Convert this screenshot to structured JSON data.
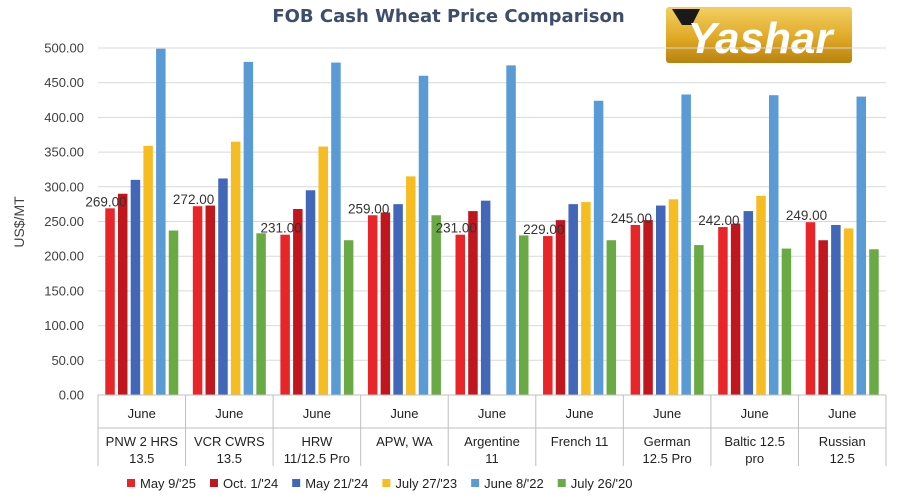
{
  "logo": {
    "text": "Yashar"
  },
  "chart_data": {
    "type": "bar",
    "title": "FOB Cash Wheat Price Comparison",
    "ylabel": "US$/MT",
    "ylim": [
      0,
      500
    ],
    "yticks": [
      "0.00",
      "50.00",
      "100.00",
      "150.00",
      "200.00",
      "250.00",
      "300.00",
      "350.00",
      "400.00",
      "450.00",
      "500.00"
    ],
    "grid": true,
    "legend_position": "bottom",
    "categories": [
      {
        "month": "June",
        "name": [
          "PNW 2 HRS",
          "13.5"
        ]
      },
      {
        "month": "June",
        "name": [
          "VCR CWRS",
          "13.5"
        ]
      },
      {
        "month": "June",
        "name": [
          "HRW",
          "11/12.5 Pro"
        ]
      },
      {
        "month": "June",
        "name": [
          "APW, WA",
          ""
        ]
      },
      {
        "month": "June",
        "name": [
          "Argentine",
          "11"
        ]
      },
      {
        "month": "June",
        "name": [
          "French  11",
          ""
        ]
      },
      {
        "month": "June",
        "name": [
          "German",
          "12.5 Pro"
        ]
      },
      {
        "month": "June",
        "name": [
          "Baltic 12.5",
          "pro"
        ]
      },
      {
        "month": "June",
        "name": [
          "Russian",
          "12.5"
        ]
      }
    ],
    "series": [
      {
        "name": "May 9/'25",
        "color": "#e8262a",
        "values": [
          269,
          272,
          231,
          259,
          231,
          229,
          245,
          242,
          249
        ],
        "data_labels": [
          "269.00",
          "272.00",
          "231.00",
          "259.00",
          "231.00",
          "229.00",
          "245.00",
          "242.00",
          "249.00"
        ]
      },
      {
        "name": "Oct. 1/'24",
        "color": "#c0171f",
        "values": [
          290,
          273,
          268,
          263,
          265,
          252,
          252,
          247,
          223
        ]
      },
      {
        "name": "May 21/'24",
        "color": "#4266b8",
        "values": [
          310,
          312,
          295,
          275,
          280,
          275,
          273,
          265,
          245
        ]
      },
      {
        "name": "July 27/'23",
        "color": "#f6bd23",
        "values": [
          359,
          365,
          358,
          315,
          0,
          278,
          282,
          287,
          240
        ]
      },
      {
        "name": "June 8/'22",
        "color": "#5b9bd5",
        "values": [
          499,
          480,
          479,
          460,
          475,
          424,
          433,
          432,
          430
        ]
      },
      {
        "name": "July 26/'20",
        "color": "#6aaa44",
        "values": [
          237,
          233,
          223,
          259,
          230,
          223,
          216,
          211,
          210
        ]
      }
    ]
  }
}
